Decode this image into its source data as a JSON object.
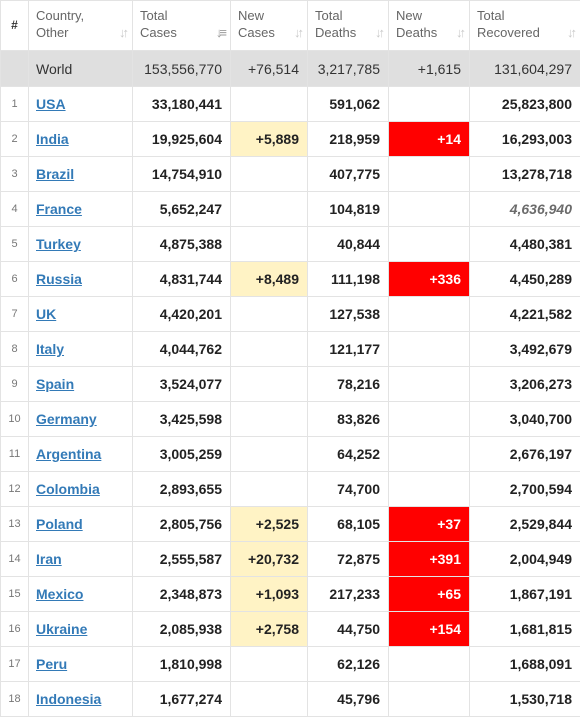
{
  "headers": {
    "num": "#",
    "country_line1": "Country,",
    "country_line2": "Other",
    "total_cases_line1": "Total",
    "total_cases_line2": "Cases",
    "new_cases_line1": "New",
    "new_cases_line2": "Cases",
    "total_deaths_line1": "Total",
    "total_deaths_line2": "Deaths",
    "new_deaths_line1": "New",
    "new_deaths_line2": "Deaths",
    "total_recovered_line1": "Total",
    "total_recovered_line2": "Recovered"
  },
  "icons": {
    "sort": "sort-arrows-icon",
    "sort_active": "sort-desc-active-icon"
  },
  "colors": {
    "new_cases_highlight": "#fff3c5",
    "new_deaths_highlight": "#ff0000",
    "link": "#337ab7",
    "world_row": "#dfdfdf"
  },
  "world": {
    "country": "World",
    "total_cases": "153,556,770",
    "new_cases": "+76,514",
    "total_deaths": "3,217,785",
    "new_deaths": "+1,615",
    "total_recovered": "131,604,297"
  },
  "rows": [
    {
      "idx": "1",
      "country": "USA",
      "total_cases": "33,180,441",
      "new_cases": "",
      "total_deaths": "591,062",
      "new_deaths": "",
      "total_recovered": "25,823,800"
    },
    {
      "idx": "2",
      "country": "India",
      "total_cases": "19,925,604",
      "new_cases": "+5,889",
      "total_deaths": "218,959",
      "new_deaths": "+14",
      "total_recovered": "16,293,003"
    },
    {
      "idx": "3",
      "country": "Brazil",
      "total_cases": "14,754,910",
      "new_cases": "",
      "total_deaths": "407,775",
      "new_deaths": "",
      "total_recovered": "13,278,718"
    },
    {
      "idx": "4",
      "country": "France",
      "total_cases": "5,652,247",
      "new_cases": "",
      "total_deaths": "104,819",
      "new_deaths": "",
      "total_recovered": "4,636,940",
      "recovered_italic": true
    },
    {
      "idx": "5",
      "country": "Turkey",
      "total_cases": "4,875,388",
      "new_cases": "",
      "total_deaths": "40,844",
      "new_deaths": "",
      "total_recovered": "4,480,381"
    },
    {
      "idx": "6",
      "country": "Russia",
      "total_cases": "4,831,744",
      "new_cases": "+8,489",
      "total_deaths": "111,198",
      "new_deaths": "+336",
      "total_recovered": "4,450,289"
    },
    {
      "idx": "7",
      "country": "UK",
      "total_cases": "4,420,201",
      "new_cases": "",
      "total_deaths": "127,538",
      "new_deaths": "",
      "total_recovered": "4,221,582"
    },
    {
      "idx": "8",
      "country": "Italy",
      "total_cases": "4,044,762",
      "new_cases": "",
      "total_deaths": "121,177",
      "new_deaths": "",
      "total_recovered": "3,492,679"
    },
    {
      "idx": "9",
      "country": "Spain",
      "total_cases": "3,524,077",
      "new_cases": "",
      "total_deaths": "78,216",
      "new_deaths": "",
      "total_recovered": "3,206,273"
    },
    {
      "idx": "10",
      "country": "Germany",
      "total_cases": "3,425,598",
      "new_cases": "",
      "total_deaths": "83,826",
      "new_deaths": "",
      "total_recovered": "3,040,700"
    },
    {
      "idx": "11",
      "country": "Argentina",
      "total_cases": "3,005,259",
      "new_cases": "",
      "total_deaths": "64,252",
      "new_deaths": "",
      "total_recovered": "2,676,197"
    },
    {
      "idx": "12",
      "country": "Colombia",
      "total_cases": "2,893,655",
      "new_cases": "",
      "total_deaths": "74,700",
      "new_deaths": "",
      "total_recovered": "2,700,594"
    },
    {
      "idx": "13",
      "country": "Poland",
      "total_cases": "2,805,756",
      "new_cases": "+2,525",
      "total_deaths": "68,105",
      "new_deaths": "+37",
      "total_recovered": "2,529,844"
    },
    {
      "idx": "14",
      "country": "Iran",
      "total_cases": "2,555,587",
      "new_cases": "+20,732",
      "total_deaths": "72,875",
      "new_deaths": "+391",
      "total_recovered": "2,004,949"
    },
    {
      "idx": "15",
      "country": "Mexico",
      "total_cases": "2,348,873",
      "new_cases": "+1,093",
      "total_deaths": "217,233",
      "new_deaths": "+65",
      "total_recovered": "1,867,191"
    },
    {
      "idx": "16",
      "country": "Ukraine",
      "total_cases": "2,085,938",
      "new_cases": "+2,758",
      "total_deaths": "44,750",
      "new_deaths": "+154",
      "total_recovered": "1,681,815"
    },
    {
      "idx": "17",
      "country": "Peru",
      "total_cases": "1,810,998",
      "new_cases": "",
      "total_deaths": "62,126",
      "new_deaths": "",
      "total_recovered": "1,688,091"
    },
    {
      "idx": "18",
      "country": "Indonesia",
      "total_cases": "1,677,274",
      "new_cases": "",
      "total_deaths": "45,796",
      "new_deaths": "",
      "total_recovered": "1,530,718"
    }
  ]
}
